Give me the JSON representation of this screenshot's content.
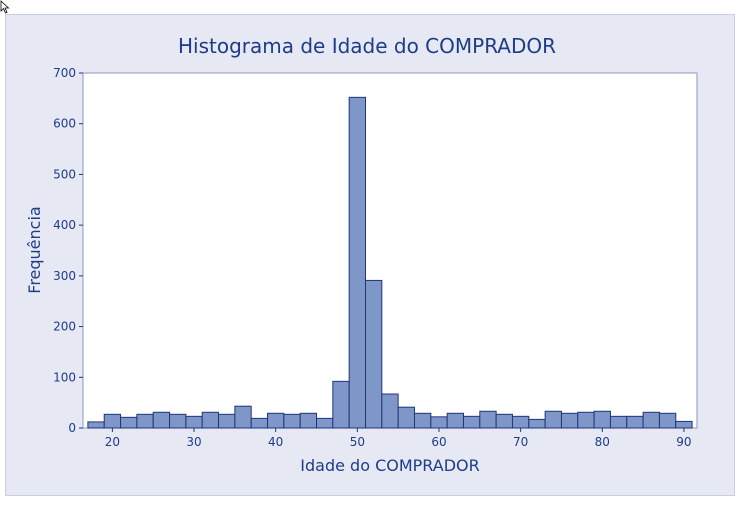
{
  "chart_data": {
    "type": "bar",
    "title": "Histograma de Idade do COMPRADOR",
    "xlabel": "Idade do COMPRADOR",
    "ylabel": "Frequência",
    "ylim": [
      0,
      700
    ],
    "xlim": [
      16.4,
      91.6
    ],
    "bin_width": 2,
    "bin_starts": [
      17,
      19,
      21,
      23,
      25,
      27,
      29,
      31,
      33,
      35,
      37,
      39,
      41,
      43,
      45,
      47,
      49,
      51,
      53,
      55,
      57,
      59,
      61,
      63,
      65,
      67,
      69,
      71,
      73,
      75,
      77,
      79,
      81,
      83,
      85,
      87,
      89
    ],
    "values": [
      12,
      27,
      21,
      27,
      31,
      27,
      23,
      31,
      27,
      43,
      19,
      29,
      27,
      29,
      19,
      92,
      652,
      291,
      67,
      41,
      29,
      22,
      29,
      23,
      33,
      27,
      23,
      17,
      33,
      29,
      31,
      33,
      23,
      23,
      31,
      29,
      13
    ],
    "x_ticks": [
      20,
      30,
      40,
      50,
      60,
      70,
      80,
      90
    ],
    "y_ticks": [
      0,
      100,
      200,
      300,
      400,
      500,
      600,
      700
    ],
    "grid": false,
    "bar_color": "#7f96c9",
    "edge_color": "#20357a",
    "text_color": "#1f3c88"
  }
}
